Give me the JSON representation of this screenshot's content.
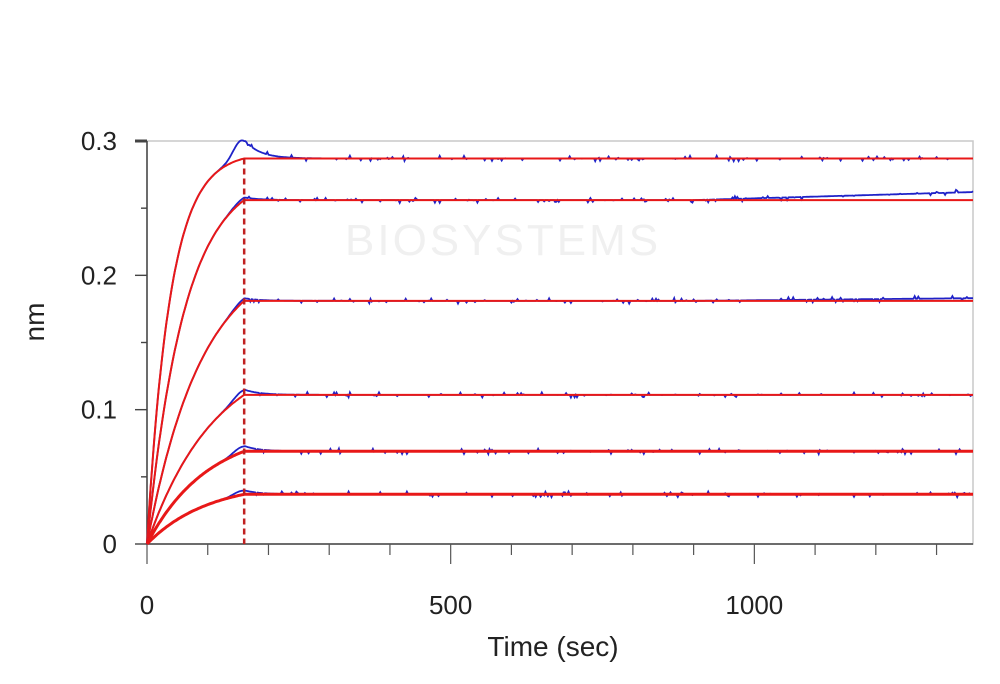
{
  "chart_data": {
    "type": "line",
    "title": "",
    "xlabel": "Time (sec)",
    "ylabel": "nm",
    "xlim": [
      0,
      1360
    ],
    "ylim": [
      0,
      0.3
    ],
    "x_ticks": [
      0,
      500,
      1000
    ],
    "x_tick_labels": [
      "0",
      "500",
      "1000"
    ],
    "y_ticks": [
      0,
      0.1,
      0.2,
      0.3
    ],
    "y_tick_labels": [
      "0",
      "0.1",
      "0.2",
      "0.3"
    ],
    "grid": false,
    "legend": "none",
    "watermark": "BIOSYSTEMS",
    "association_end": 160,
    "marker_line_x": 160,
    "colors": {
      "measured": "#1f22c8",
      "fit": "#e81818"
    },
    "series": [
      {
        "plateau": 0.287,
        "peak": 0.301,
        "end": 0.287,
        "k": 0.026
      },
      {
        "plateau": 0.256,
        "peak": 0.258,
        "end": 0.262,
        "k": 0.016
      },
      {
        "plateau": 0.181,
        "peak": 0.183,
        "end": 0.183,
        "k": 0.011
      },
      {
        "plateau": 0.111,
        "peak": 0.115,
        "end": 0.111,
        "k": 0.009
      },
      {
        "plateau": 0.069,
        "peak": 0.073,
        "end": 0.069,
        "k": 0.01
      },
      {
        "plateau": 0.037,
        "peak": 0.04,
        "end": 0.037,
        "k": 0.01
      }
    ]
  }
}
